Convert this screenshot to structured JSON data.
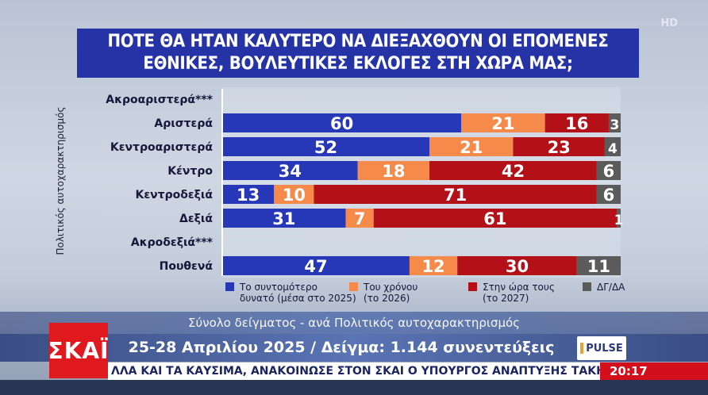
{
  "title_lines": [
    "ΠΟΤΕ ΘΑ ΗΤΑΝ ΚΑΛΥΤΕΡΟ ΝΑ ΔΙΕΞΑΧΘΟΥΝ ΟΙ ΕΠΟΜΕΝΕΣ",
    "ΕΘΝΙΚΕΣ, ΒΟΥΛΕΥΤΙΚΕΣ ΕΚΛΟΓΕΣ ΣΤΗ ΧΩΡΑ ΜΑΣ;"
  ],
  "hd_badge": "HD",
  "y_axis_title": "Πολιτικός αυτοχαρακτηρισμός",
  "chart_data": {
    "type": "bar",
    "orientation": "horizontal",
    "stacked": true,
    "xlim": [
      0,
      100
    ],
    "categories": [
      "Ακροαριστερά***",
      "Αριστερά",
      "Κεντροαριστερά",
      "Κέντρο",
      "Κεντροδεξιά",
      "Δεξιά",
      "Ακροδεξιά***",
      "Πουθενά"
    ],
    "series": [
      {
        "name": "Το συντομότερο δυνατό (μέσα στο 2025)",
        "color": "#2638b8",
        "values": [
          null,
          60,
          52,
          34,
          13,
          31,
          null,
          47
        ]
      },
      {
        "name": "Του χρόνου (το 2026)",
        "color": "#f58a4a",
        "values": [
          null,
          21,
          21,
          18,
          10,
          7,
          null,
          12
        ]
      },
      {
        "name": "Στην ώρα τους (το 2027)",
        "color": "#b41017",
        "values": [
          null,
          16,
          23,
          42,
          71,
          61,
          null,
          30
        ]
      },
      {
        "name": "ΔΓ/ΔΑ",
        "color": "#5b5b5b",
        "values": [
          null,
          3,
          4,
          6,
          6,
          1,
          null,
          11
        ]
      }
    ],
    "legend": [
      {
        "lines": [
          "Το συντομότερο",
          "δυνατό (μέσα στο 2025)"
        ],
        "color": "#2638b8"
      },
      {
        "lines": [
          "Του χρόνου",
          "(το 2026)"
        ],
        "color": "#f58a4a"
      },
      {
        "lines": [
          "Στην ώρα τους",
          "(το 2027)"
        ],
        "color": "#b41017"
      },
      {
        "lines": [
          "ΔΓ/ΔΑ"
        ],
        "color": "#5b5b5b"
      }
    ],
    "legend_position": "bottom"
  },
  "footer": {
    "sample": "Σύνολο δείγματος - ανά Πολιτικός αυτοχαρακτηρισμός",
    "dates": "25-28 Απριλίου 2025 / Δείγμα: 1.144 συνεντεύξεις"
  },
  "logo_text": "ΣΚΑΪ",
  "pulse_text": "PULSE",
  "ticker_text": "ΛΛΑ ΚΑΙ ΤΑ ΚΑΥΣΙΜΑ, ΑΝΑΚΟΙΝΩΣΕ ΣΤΟΝ ΣΚΑΙ Ο ΥΠΟΥΡΓΟΣ ΑΝΑΠΤΥΞΗΣ ΤΑΚΗΣ ΘΕΟΔΩΡΙΚΑΙ",
  "clock": "20:17"
}
